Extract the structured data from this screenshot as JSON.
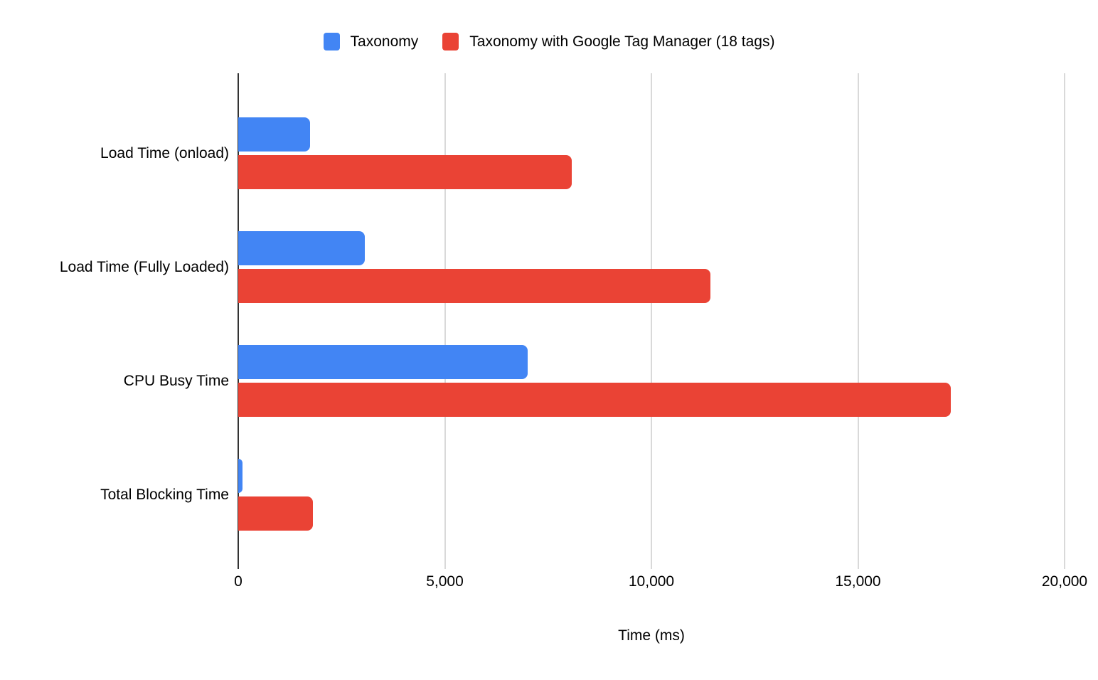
{
  "chart_data": {
    "type": "bar",
    "orientation": "horizontal",
    "title": "",
    "xlabel": "Time (ms)",
    "ylabel": "",
    "categories": [
      "Load Time (onload)",
      "Load Time (Fully Loaded)",
      "CPU Busy Time",
      "Total Blocking Time"
    ],
    "series": [
      {
        "name": "Taxonomy",
        "color": "#4285F4",
        "values": [
          1740,
          3070,
          7000,
          100
        ]
      },
      {
        "name": "Taxonomy with Google Tag Manager (18 tags)",
        "color": "#EA4335",
        "values": [
          8080,
          11430,
          17250,
          1800
        ]
      }
    ],
    "xlim": [
      0,
      20000
    ],
    "xticks": [
      {
        "value": 0,
        "label": "0"
      },
      {
        "value": 5000,
        "label": "5,000"
      },
      {
        "value": 10000,
        "label": "10,000"
      },
      {
        "value": 15000,
        "label": "15,000"
      },
      {
        "value": 20000,
        "label": "20,000"
      }
    ],
    "grid": true,
    "legend_position": "top",
    "colors": {
      "background": "#ffffff",
      "gridline": "#d9d9d9",
      "axis_line": "#333333",
      "text": "#000000"
    }
  }
}
